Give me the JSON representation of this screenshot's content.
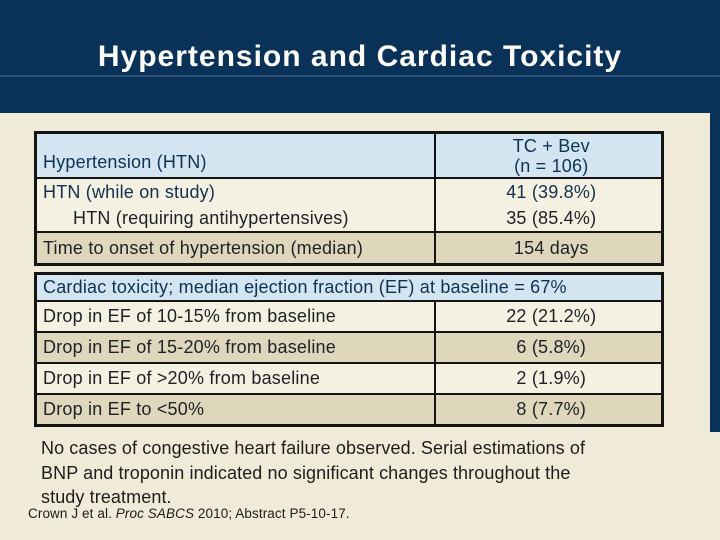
{
  "slide": {
    "title": "Hypertension and Cardiac Toxicity",
    "colors": {
      "navy_band": "#0a3158",
      "cream_background": "#f0ead8",
      "header_row_blue": "#d2e5f1",
      "row_light": "#f4f0e2",
      "row_dark": "#ded7bc",
      "table_border": "#141414",
      "header_text_navy": "#0d3254",
      "title_text": "#fbfbf3"
    },
    "table1": {
      "header_label": "Hypertension (HTN)",
      "header_value_line1": "TC + Bev",
      "header_value_line2": "(n = 106)",
      "rows": [
        {
          "label": "HTN (while on study)",
          "value": "41 (39.8%)"
        },
        {
          "label": "HTN (requiring antihypertensives)",
          "value": "35 (85.4%)"
        },
        {
          "label": "Time to onset of hypertension (median)",
          "value": "154 days"
        }
      ]
    },
    "table2": {
      "header": "Cardiac toxicity; median ejection fraction (EF) at baseline = 67%",
      "rows": [
        {
          "label": "Drop in EF of 10-15% from baseline",
          "value": "22 (21.2%)"
        },
        {
          "label": "Drop in EF of 15-20% from baseline",
          "value": "6 (5.8%)"
        },
        {
          "label": "Drop in EF of >20% from baseline",
          "value": "2 (1.9%)"
        },
        {
          "label": "Drop in EF to <50%",
          "value": "8 (7.7%)"
        }
      ]
    },
    "note_lines": [
      "No cases of congestive heart failure observed. Serial estimations of",
      "BNP and troponin indicated no significant changes throughout the",
      "study treatment."
    ],
    "citation": {
      "prefix": "Crown J et al. ",
      "italic": "Proc SABCS",
      "suffix": " 2010; Abstract P5-10-17."
    }
  }
}
